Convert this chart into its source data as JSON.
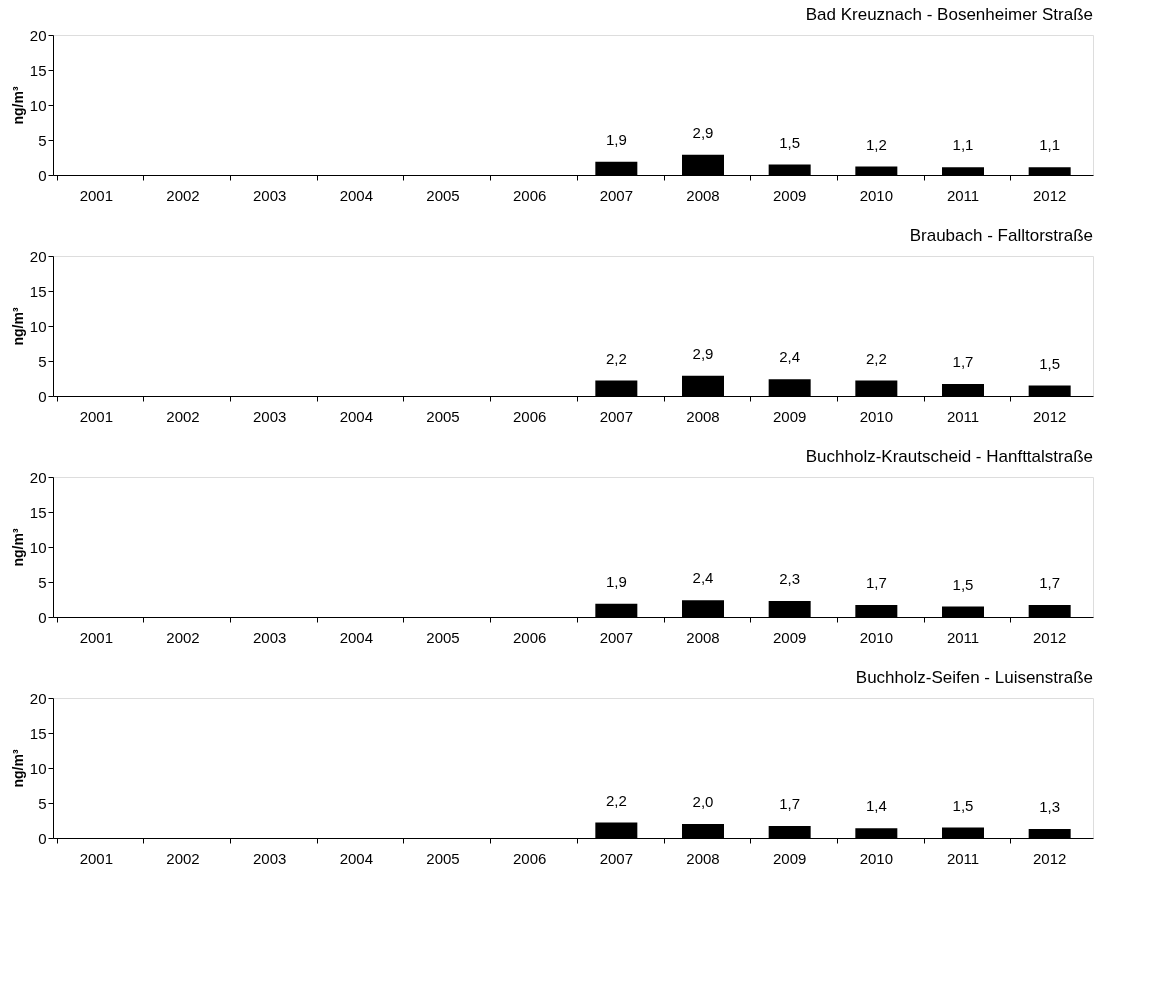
{
  "chart_data": [
    {
      "type": "bar",
      "title": "Bad Kreuznach - Bosenheimer Straße",
      "ylabel": "ng/m³",
      "categories": [
        "2001",
        "2002",
        "2003",
        "2004",
        "2005",
        "2006",
        "2007",
        "2008",
        "2009",
        "2010",
        "2011",
        "2012"
      ],
      "values": [
        null,
        null,
        null,
        null,
        null,
        null,
        1.9,
        2.9,
        1.5,
        1.2,
        1.1,
        1.1
      ],
      "value_labels": [
        null,
        null,
        null,
        null,
        null,
        null,
        "1,9",
        "2,9",
        "1,5",
        "1,2",
        "1,1",
        "1,1"
      ],
      "color": "#000000",
      "ylim": [
        0,
        20
      ],
      "yticks": [
        0,
        5,
        10,
        15,
        20
      ],
      "grid": false
    },
    {
      "type": "bar",
      "title": "Braubach - Falltorstraße",
      "ylabel": "ng/m³",
      "categories": [
        "2001",
        "2002",
        "2003",
        "2004",
        "2005",
        "2006",
        "2007",
        "2008",
        "2009",
        "2010",
        "2011",
        "2012"
      ],
      "values": [
        null,
        null,
        null,
        null,
        null,
        null,
        2.2,
        2.9,
        2.4,
        2.2,
        1.7,
        1.5
      ],
      "value_labels": [
        null,
        null,
        null,
        null,
        null,
        null,
        "2,2",
        "2,9",
        "2,4",
        "2,2",
        "1,7",
        "1,5"
      ],
      "color": "#000000",
      "ylim": [
        0,
        20
      ],
      "yticks": [
        0,
        5,
        10,
        15,
        20
      ],
      "grid": false
    },
    {
      "type": "bar",
      "title": "Buchholz-Krautscheid - Hanfttalstraße",
      "ylabel": "ng/m³",
      "categories": [
        "2001",
        "2002",
        "2003",
        "2004",
        "2005",
        "2006",
        "2007",
        "2008",
        "2009",
        "2010",
        "2011",
        "2012"
      ],
      "values": [
        null,
        null,
        null,
        null,
        null,
        null,
        1.9,
        2.4,
        2.3,
        1.7,
        1.5,
        1.7
      ],
      "value_labels": [
        null,
        null,
        null,
        null,
        null,
        null,
        "1,9",
        "2,4",
        "2,3",
        "1,7",
        "1,5",
        "1,7"
      ],
      "color": "#000000",
      "ylim": [
        0,
        20
      ],
      "yticks": [
        0,
        5,
        10,
        15,
        20
      ],
      "grid": false
    },
    {
      "type": "bar",
      "title": "Buchholz-Seifen - Luisenstraße",
      "ylabel": "ng/m³",
      "categories": [
        "2001",
        "2002",
        "2003",
        "2004",
        "2005",
        "2006",
        "2007",
        "2008",
        "2009",
        "2010",
        "2011",
        "2012"
      ],
      "values": [
        null,
        null,
        null,
        null,
        null,
        null,
        2.2,
        2.0,
        1.7,
        1.4,
        1.5,
        1.3
      ],
      "value_labels": [
        null,
        null,
        null,
        null,
        null,
        null,
        "2,2",
        "2,0",
        "1,7",
        "1,4",
        "1,5",
        "1,3"
      ],
      "color": "#000000",
      "ylim": [
        0,
        20
      ],
      "yticks": [
        0,
        5,
        10,
        15,
        20
      ],
      "grid": false
    }
  ]
}
